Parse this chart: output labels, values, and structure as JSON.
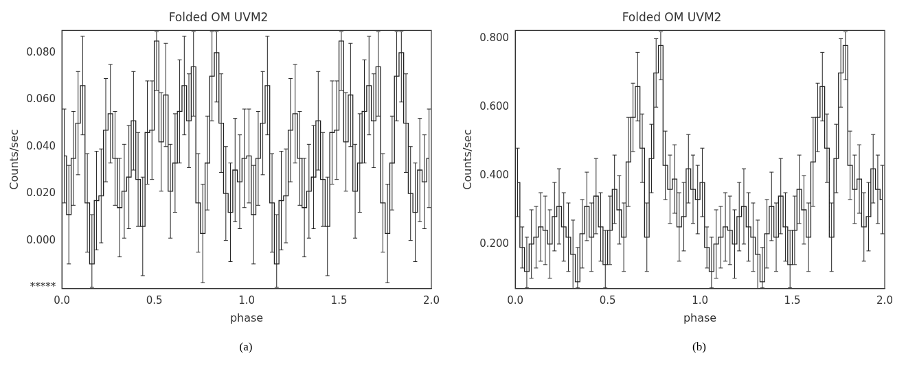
{
  "chart_data": [
    {
      "type": "step",
      "title": "Folded OM UVM2",
      "xlabel": "phase",
      "ylabel": "Counts/sec",
      "annotations": [
        "(a)"
      ],
      "color": "#222222",
      "x": [
        0.0125,
        0.0375,
        0.0625,
        0.0875,
        0.1125,
        0.1375,
        0.1625,
        0.1875,
        0.2125,
        0.2375,
        0.2625,
        0.2875,
        0.3125,
        0.3375,
        0.3625,
        0.3875,
        0.4125,
        0.4375,
        0.4625,
        0.4875,
        0.5125,
        0.5375,
        0.5625,
        0.5875,
        0.6125,
        0.6375,
        0.6625,
        0.6875,
        0.7125,
        0.7375,
        0.7625,
        0.7875,
        0.8125,
        0.8375,
        0.8625,
        0.8875,
        0.9125,
        0.9375,
        0.9625,
        0.9875,
        1.0125,
        1.0375,
        1.0625,
        1.0875,
        1.1125,
        1.1375,
        1.1625,
        1.1875,
        1.2125,
        1.2375,
        1.2625,
        1.2875,
        1.3125,
        1.3375,
        1.3625,
        1.3875,
        1.4125,
        1.4375,
        1.4625,
        1.4875,
        1.5125,
        1.5375,
        1.5625,
        1.5875,
        1.6125,
        1.6375,
        1.6625,
        1.6875,
        1.7125,
        1.7375,
        1.7625,
        1.7875,
        1.8125,
        1.8375,
        1.8625,
        1.8875,
        1.9125,
        1.9375,
        1.9625,
        1.9875
      ],
      "values": [
        0.036,
        0.011,
        0.035,
        0.05,
        0.066,
        0.016,
        -0.01,
        0.017,
        0.019,
        0.047,
        0.054,
        0.035,
        0.014,
        0.021,
        0.027,
        0.051,
        0.026,
        0.006,
        0.046,
        0.047,
        0.085,
        0.042,
        0.062,
        0.021,
        0.033,
        0.055,
        0.066,
        0.051,
        0.074,
        0.016,
        0.003,
        0.033,
        0.07,
        0.08,
        0.05,
        0.02,
        0.012,
        0.03,
        0.025,
        0.035,
        0.036,
        0.011,
        0.035,
        0.05,
        0.066,
        0.016,
        -0.01,
        0.017,
        0.019,
        0.047,
        0.054,
        0.035,
        0.014,
        0.021,
        0.027,
        0.051,
        0.026,
        0.006,
        0.046,
        0.047,
        0.085,
        0.042,
        0.062,
        0.021,
        0.033,
        0.055,
        0.066,
        0.051,
        0.074,
        0.016,
        0.003,
        0.033,
        0.07,
        0.08,
        0.05,
        0.02,
        0.012,
        0.03,
        0.025,
        0.035
      ],
      "errors": [
        0.02,
        0.021,
        0.02,
        0.022,
        0.021,
        0.021,
        [
          -0.02,
          0.011
        ],
        0.021,
        0.02,
        0.022,
        0.021,
        0.02,
        0.021,
        0.02,
        0.022,
        0.021,
        0.02,
        0.021,
        0.022,
        0.021,
        [
          0.064,
          0.089
        ],
        0.021,
        0.022,
        0.02,
        0.021,
        0.022,
        0.021,
        0.02,
        [
          0.053,
          0.089
        ],
        0.021,
        0.021,
        0.02,
        0.019,
        [
          0.059,
          0.089
        ],
        0.021,
        0.02,
        0.021,
        0.022,
        0.02,
        0.021,
        0.02,
        0.021,
        0.02,
        0.022,
        0.021,
        0.021,
        [
          -0.02,
          0.011
        ],
        0.021,
        0.02,
        0.022,
        0.021,
        0.02,
        0.021,
        0.02,
        0.022,
        0.021,
        0.02,
        0.021,
        0.022,
        0.021,
        [
          0.064,
          0.089
        ],
        0.021,
        0.022,
        0.02,
        0.021,
        0.022,
        0.021,
        0.02,
        [
          0.053,
          0.089
        ],
        0.021,
        0.021,
        0.02,
        0.019,
        [
          0.059,
          0.089
        ],
        0.021,
        0.02,
        0.021,
        0.022,
        0.02,
        0.021
      ],
      "xlim": [
        0,
        2
      ],
      "xticks": [
        {
          "value": 0,
          "label": "0.0"
        },
        {
          "value": 0.5,
          "label": "0.5"
        },
        {
          "value": 1,
          "label": "1.0"
        },
        {
          "value": 1.5,
          "label": "1.5"
        },
        {
          "value": 2,
          "label": "2.0"
        }
      ],
      "ylim": [
        -0.0205,
        0.0895
      ],
      "yticks": [
        {
          "value": -0.02,
          "label": "*****"
        },
        {
          "value": 0,
          "label": "0.000"
        },
        {
          "value": 0.02,
          "label": "0.020"
        },
        {
          "value": 0.04,
          "label": "0.040"
        },
        {
          "value": 0.06,
          "label": "0.060"
        },
        {
          "value": 0.08,
          "label": "0.080"
        }
      ],
      "legend": false
    },
    {
      "type": "step",
      "title": "Folded OM UVM2",
      "xlabel": "phase",
      "ylabel": "Counts/sec",
      "annotations": [
        "(b)"
      ],
      "color": "#222222",
      "x": [
        0.0125,
        0.0375,
        0.0625,
        0.0875,
        0.1125,
        0.1375,
        0.1625,
        0.1875,
        0.2125,
        0.2375,
        0.2625,
        0.2875,
        0.3125,
        0.3375,
        0.3625,
        0.3875,
        0.4125,
        0.4375,
        0.4625,
        0.4875,
        0.5125,
        0.5375,
        0.5625,
        0.5875,
        0.6125,
        0.6375,
        0.6625,
        0.6875,
        0.7125,
        0.7375,
        0.7625,
        0.7875,
        0.8125,
        0.8375,
        0.8625,
        0.8875,
        0.9125,
        0.9375,
        0.9625,
        0.9875,
        1.0125,
        1.0375,
        1.0625,
        1.0875,
        1.1125,
        1.1375,
        1.1625,
        1.1875,
        1.2125,
        1.2375,
        1.2625,
        1.2875,
        1.3125,
        1.3375,
        1.3625,
        1.3875,
        1.4125,
        1.4375,
        1.4625,
        1.4875,
        1.5125,
        1.5375,
        1.5625,
        1.5875,
        1.6125,
        1.6375,
        1.6625,
        1.6875,
        1.7125,
        1.7375,
        1.7625,
        1.7875,
        1.8125,
        1.8375,
        1.8625,
        1.8875,
        1.9125,
        1.9375,
        1.9625,
        1.9875
      ],
      "values": [
        0.38,
        0.19,
        0.12,
        0.2,
        0.22,
        0.25,
        0.24,
        0.2,
        0.28,
        0.31,
        0.25,
        0.22,
        0.17,
        0.09,
        0.23,
        0.31,
        0.22,
        0.34,
        0.25,
        0.14,
        0.24,
        0.36,
        0.3,
        0.22,
        0.44,
        0.57,
        0.66,
        0.48,
        0.22,
        0.45,
        0.7,
        0.78,
        0.43,
        0.36,
        0.39,
        0.25,
        0.28,
        0.42,
        0.36,
        0.33,
        0.38,
        0.19,
        0.12,
        0.2,
        0.22,
        0.25,
        0.24,
        0.2,
        0.28,
        0.31,
        0.25,
        0.22,
        0.17,
        0.09,
        0.23,
        0.31,
        0.22,
        0.34,
        0.25,
        0.14,
        0.24,
        0.36,
        0.3,
        0.22,
        0.44,
        0.57,
        0.66,
        0.48,
        0.22,
        0.45,
        0.7,
        0.78,
        0.43,
        0.36,
        0.39,
        0.25,
        0.28,
        0.42,
        0.36,
        0.33
      ],
      "errors": [
        0.1,
        0.06,
        [
          0.072,
          0.22
        ],
        0.1,
        0.09,
        0.1,
        0.1,
        0.1,
        0.1,
        0.11,
        0.1,
        0.1,
        0.1,
        [
          0.072,
          0.19
        ],
        0.1,
        0.1,
        0.1,
        0.11,
        0.1,
        [
          0.072,
          0.24
        ],
        0.1,
        0.1,
        0.1,
        0.1,
        0.13,
        0.1,
        0.1,
        0.1,
        0.1,
        0.1,
        0.1,
        [
          0.68,
          0.82
        ],
        0.1,
        0.1,
        0.1,
        0.1,
        0.1,
        0.1,
        0.1,
        0.1,
        0.1,
        0.06,
        [
          0.072,
          0.22
        ],
        0.1,
        0.09,
        0.1,
        0.1,
        0.1,
        0.1,
        0.11,
        0.1,
        0.1,
        0.1,
        [
          0.072,
          0.19
        ],
        0.1,
        0.1,
        0.1,
        0.11,
        0.1,
        [
          0.072,
          0.24
        ],
        0.1,
        0.1,
        0.1,
        0.1,
        0.13,
        0.1,
        0.1,
        0.1,
        0.1,
        0.1,
        0.1,
        [
          0.68,
          0.82
        ],
        0.1,
        0.1,
        0.1,
        0.1,
        0.1,
        0.1,
        0.1,
        0.1
      ],
      "xlim": [
        0,
        2
      ],
      "xticks": [
        {
          "value": 0,
          "label": "0.0"
        },
        {
          "value": 0.5,
          "label": "0.5"
        },
        {
          "value": 1,
          "label": "1.0"
        },
        {
          "value": 1.5,
          "label": "1.5"
        },
        {
          "value": 2,
          "label": "2.0"
        }
      ],
      "ylim": [
        0.07,
        0.824
      ],
      "yticks": [
        {
          "value": 0.2,
          "label": "0.200"
        },
        {
          "value": 0.4,
          "label": "0.400"
        },
        {
          "value": 0.6,
          "label": "0.600"
        },
        {
          "value": 0.8,
          "label": "0.800"
        }
      ],
      "legend": false
    }
  ]
}
